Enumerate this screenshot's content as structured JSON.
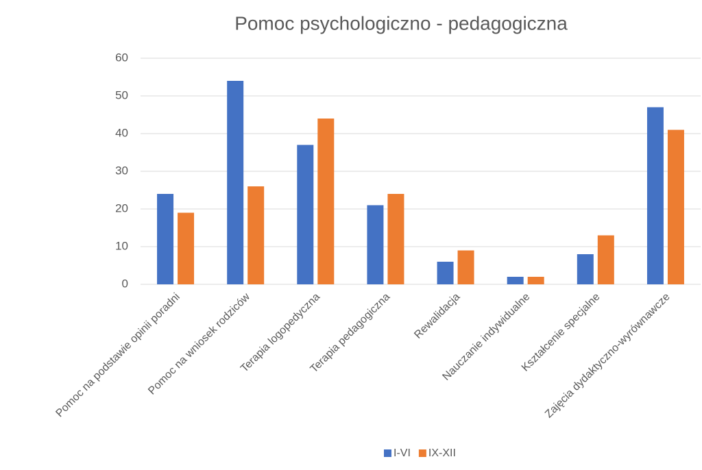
{
  "chart_data": {
    "type": "bar",
    "title": "Pomoc psychologiczno - pedagogiczna",
    "categories": [
      "Pomoc na podstawie opinii poradni",
      "Pomoc na wniosek rodziców",
      "Terapia logopedyczna",
      "Terapia pedagogiczna",
      "Rewalidacja",
      "Nauczanie indywidualne",
      "Kształcenie specjalne",
      "Zajęcia dydaktyczno-wyrównawcze"
    ],
    "series": [
      {
        "name": "I-VI",
        "color": "#4472c4",
        "values": [
          24,
          54,
          37,
          21,
          6,
          2,
          8,
          47
        ]
      },
      {
        "name": "IX-XII",
        "color": "#ed7d31",
        "values": [
          19,
          26,
          44,
          24,
          9,
          2,
          13,
          41
        ]
      }
    ],
    "ylim": [
      0,
      60
    ],
    "yticks": [
      0,
      10,
      20,
      30,
      40,
      50,
      60
    ],
    "grid": true,
    "legend": "bottom"
  }
}
